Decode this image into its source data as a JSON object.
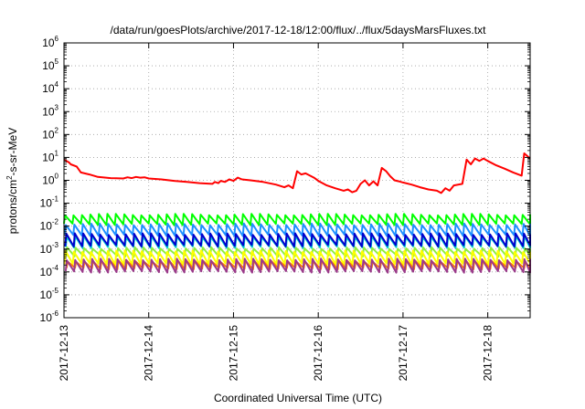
{
  "chart_data": {
    "type": "line",
    "title": "/data/run/goesPlots/archive/2017-12-18/12:00/flux/../flux/5daysMarsFluxes.txt",
    "xlabel": "Coordinated Universal Time (UTC)",
    "ylabel": "protons/cm²-s-sr-MeV",
    "ylabel_base": "protons/cm",
    "ylabel_sup": "2",
    "ylabel_rest": "-s-sr-MeV",
    "yscale": "log",
    "ylim": [
      1e-06,
      1000000.0
    ],
    "xlim": [
      0,
      5.5
    ],
    "x_units": "days since 2017-12-13 00:00 UTC",
    "grid": true,
    "x_ticks": [
      {
        "value": 0,
        "label": "2017-12-13"
      },
      {
        "value": 1,
        "label": "2017-12-14"
      },
      {
        "value": 2,
        "label": "2017-12-15"
      },
      {
        "value": 3,
        "label": "2017-12-16"
      },
      {
        "value": 4,
        "label": "2017-12-17"
      },
      {
        "value": 5,
        "label": "2017-12-18"
      }
    ],
    "y_ticks": [
      {
        "exp": -6,
        "label": "10",
        "sup": "-6"
      },
      {
        "exp": -5,
        "label": "10",
        "sup": "-5"
      },
      {
        "exp": -4,
        "label": "10",
        "sup": "-4"
      },
      {
        "exp": -3,
        "label": "10",
        "sup": "-3"
      },
      {
        "exp": -2,
        "label": "10",
        "sup": "-2"
      },
      {
        "exp": -1,
        "label": "10",
        "sup": "-1"
      },
      {
        "exp": 0,
        "label": "10",
        "sup": "0"
      },
      {
        "exp": 1,
        "label": "10",
        "sup": "1"
      },
      {
        "exp": 2,
        "label": "10",
        "sup": "2"
      },
      {
        "exp": 3,
        "label": "10",
        "sup": "3"
      },
      {
        "exp": 4,
        "label": "10",
        "sup": "4"
      },
      {
        "exp": 5,
        "label": "10",
        "sup": "5"
      },
      {
        "exp": 6,
        "label": "10",
        "sup": "6"
      }
    ],
    "series": [
      {
        "color": "#ff0000",
        "points": [
          [
            0.0,
            8
          ],
          [
            0.06,
            6
          ],
          [
            0.08,
            5
          ],
          [
            0.15,
            4
          ],
          [
            0.2,
            2.2
          ],
          [
            0.3,
            1.8
          ],
          [
            0.4,
            1.4
          ],
          [
            0.55,
            1.25
          ],
          [
            0.7,
            1.2
          ],
          [
            0.75,
            1.35
          ],
          [
            0.8,
            1.25
          ],
          [
            0.85,
            1.4
          ],
          [
            0.9,
            1.3
          ],
          [
            0.95,
            1.35
          ],
          [
            1.0,
            1.2
          ],
          [
            1.15,
            1.1
          ],
          [
            1.3,
            0.95
          ],
          [
            1.45,
            0.85
          ],
          [
            1.6,
            0.75
          ],
          [
            1.75,
            0.7
          ],
          [
            1.78,
            0.85
          ],
          [
            1.82,
            0.75
          ],
          [
            1.85,
            0.95
          ],
          [
            1.9,
            0.85
          ],
          [
            1.95,
            1.1
          ],
          [
            2.0,
            0.95
          ],
          [
            2.05,
            1.3
          ],
          [
            2.1,
            1.1
          ],
          [
            2.2,
            1.0
          ],
          [
            2.35,
            0.85
          ],
          [
            2.5,
            0.65
          ],
          [
            2.6,
            0.5
          ],
          [
            2.65,
            0.6
          ],
          [
            2.7,
            0.45
          ],
          [
            2.75,
            2.5
          ],
          [
            2.8,
            1.8
          ],
          [
            2.85,
            2.0
          ],
          [
            2.95,
            1.3
          ],
          [
            3.0,
            0.95
          ],
          [
            3.1,
            0.6
          ],
          [
            3.2,
            0.45
          ],
          [
            3.3,
            0.35
          ],
          [
            3.35,
            0.4
          ],
          [
            3.4,
            0.3
          ],
          [
            3.45,
            0.35
          ],
          [
            3.5,
            0.7
          ],
          [
            3.55,
            1.0
          ],
          [
            3.6,
            0.6
          ],
          [
            3.65,
            0.9
          ],
          [
            3.7,
            0.6
          ],
          [
            3.75,
            3.5
          ],
          [
            3.8,
            2.5
          ],
          [
            3.85,
            1.5
          ],
          [
            3.9,
            1.0
          ],
          [
            3.95,
            0.9
          ],
          [
            4.0,
            0.8
          ],
          [
            4.1,
            0.65
          ],
          [
            4.2,
            0.5
          ],
          [
            4.3,
            0.4
          ],
          [
            4.4,
            0.35
          ],
          [
            4.45,
            0.28
          ],
          [
            4.5,
            0.45
          ],
          [
            4.55,
            0.35
          ],
          [
            4.6,
            0.6
          ],
          [
            4.7,
            0.7
          ],
          [
            4.75,
            8
          ],
          [
            4.8,
            5
          ],
          [
            4.85,
            9
          ],
          [
            4.9,
            7
          ],
          [
            4.95,
            9
          ],
          [
            5.0,
            7
          ],
          [
            5.1,
            4.5
          ],
          [
            5.2,
            3.2
          ],
          [
            5.3,
            2.2
          ],
          [
            5.4,
            1.6
          ],
          [
            5.43,
            15
          ],
          [
            5.5,
            9
          ]
        ]
      },
      {
        "color": "#00ff00",
        "saw": [
          0.012,
          0.032
        ],
        "phase": 0.0
      },
      {
        "color": "#1e90ff",
        "saw": [
          0.004,
          0.012
        ],
        "phase": 0.01
      },
      {
        "color": "#00ced1",
        "saw": [
          0.0012,
          0.0035
        ],
        "phase": 0.02
      },
      {
        "color": "#0000cd",
        "saw": [
          0.0014,
          0.0045
        ],
        "phase": 0.015
      },
      {
        "color": "#90ee40",
        "saw": [
          0.0005,
          0.0011
        ],
        "phase": 0.025
      },
      {
        "color": "#ffff00",
        "saw": [
          0.00022,
          0.0008
        ],
        "phase": 0.005
      },
      {
        "color": "#ff8000",
        "saw": [
          0.00014,
          0.0003
        ],
        "phase": 0.03
      },
      {
        "color": "#9b3a8a",
        "saw": [
          0.0001,
          0.00035
        ],
        "phase": 0.02
      }
    ],
    "saw_period_days": 0.1
  }
}
